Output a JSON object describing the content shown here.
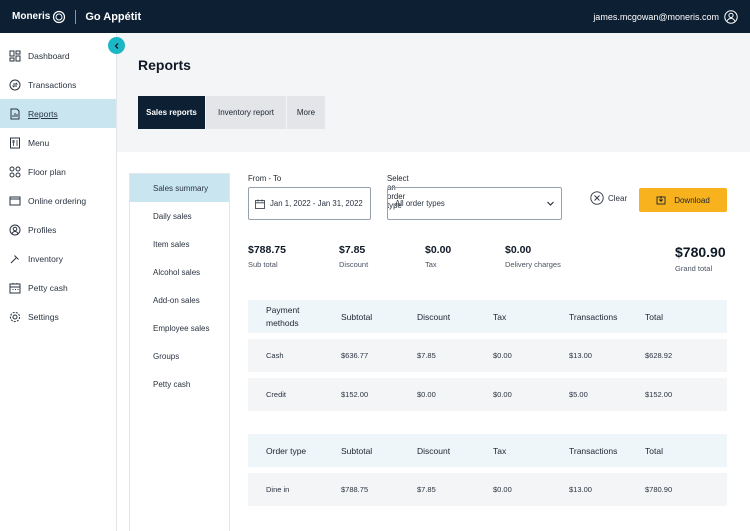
{
  "topbar": {
    "brand_name": "Moneris",
    "app_name": "Go Appétit",
    "user_email": "james.mcgowan@moneris.com"
  },
  "sidebar": {
    "items": [
      {
        "label": "Dashboard",
        "icon": "dashboard-icon"
      },
      {
        "label": "Transactions",
        "icon": "transactions-icon"
      },
      {
        "label": "Reports",
        "icon": "reports-icon",
        "active": true
      },
      {
        "label": "Menu",
        "icon": "menu-icon"
      },
      {
        "label": "Floor plan",
        "icon": "floor-plan-icon"
      },
      {
        "label": "Online ordering",
        "icon": "online-ordering-icon"
      },
      {
        "label": "Profiles",
        "icon": "profiles-icon"
      },
      {
        "label": "Inventory",
        "icon": "inventory-icon"
      },
      {
        "label": "Petty cash",
        "icon": "petty-cash-icon"
      },
      {
        "label": "Settings",
        "icon": "settings-icon"
      }
    ]
  },
  "page": {
    "title": "Reports",
    "tabs": [
      {
        "label": "Sales reports",
        "active": true
      },
      {
        "label": "Inventory report"
      },
      {
        "label": "More"
      }
    ]
  },
  "subnav": {
    "items": [
      {
        "label": "Sales summary",
        "active": true
      },
      {
        "label": "Daily sales"
      },
      {
        "label": "Item sales"
      },
      {
        "label": "Alcohol sales"
      },
      {
        "label": "Add-on sales"
      },
      {
        "label": "Employee sales"
      },
      {
        "label": "Groups"
      },
      {
        "label": "Petty cash"
      }
    ]
  },
  "filters": {
    "date_label": "From - To",
    "date_value": "Jan 1, 2022 - Jan 31, 2022",
    "order_type_label": "Select an order type",
    "order_type_value": "All order types",
    "clear_label": "Clear",
    "download_label": "Download"
  },
  "summary": {
    "subtotal": {
      "value": "$788.75",
      "label": "Sub total"
    },
    "discount": {
      "value": "$7.85",
      "label": "Discount"
    },
    "tax": {
      "value": "$0.00",
      "label": "Tax"
    },
    "delivery": {
      "value": "$0.00",
      "label": "Delivery charges"
    },
    "grand_total": {
      "value": "$780.90",
      "label": "Grand total"
    }
  },
  "payment_table": {
    "headers": [
      "Payment methods",
      "Subtotal",
      "Discount",
      "Tax",
      "Transactions",
      "Total"
    ],
    "rows": [
      [
        "Cash",
        "$636.77",
        "$7.85",
        "$0.00",
        "$13.00",
        "$628.92"
      ],
      [
        "Credit",
        "$152.00",
        "$0.00",
        "$0.00",
        "$5.00",
        "$152.00"
      ]
    ]
  },
  "order_table": {
    "headers": [
      "Order type",
      "Subtotal",
      "Discount",
      "Tax",
      "Transactions",
      "Total"
    ],
    "rows": [
      [
        "Dine in",
        "$788.75",
        "$7.85",
        "$0.00",
        "$13.00",
        "$780.90"
      ]
    ]
  },
  "colors": {
    "topbar": "#0c1f33",
    "active_nav": "#c9e6f0",
    "accent": "#1bb7c4",
    "download": "#f7b21e"
  }
}
